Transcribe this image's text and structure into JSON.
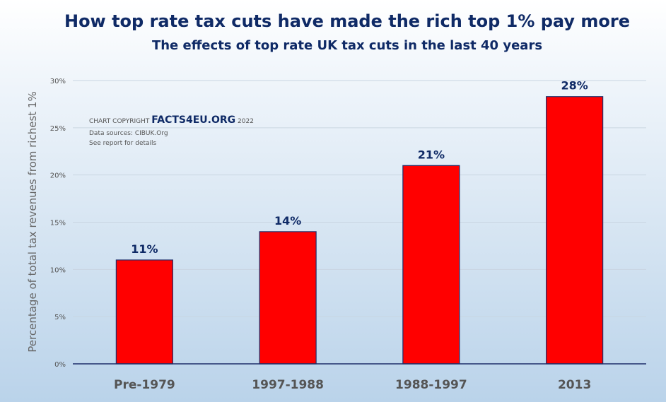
{
  "chart_data": {
    "type": "bar",
    "title": "How top rate tax cuts have made the rich top 1% pay more",
    "subtitle": "The effects of top rate UK tax cuts in the last 40 years",
    "categories": [
      "Pre-1979",
      "1997-1988",
      "1988-1997",
      "2013"
    ],
    "values": [
      11,
      14,
      21,
      28.3
    ],
    "data_labels": [
      "11%",
      "14%",
      "21%",
      "28%"
    ],
    "ylabel": "Percentage of total tax revenues from richest 1%",
    "ylim": [
      0,
      30
    ],
    "yticks": [
      0,
      5,
      10,
      15,
      20,
      25,
      30
    ],
    "ytick_labels": [
      "0%",
      "5%",
      "10%",
      "15%",
      "20%",
      "25%",
      "30%"
    ],
    "grid": true,
    "colors": {
      "bar": "#ff0000",
      "bar_edge": "#1f2f6b",
      "axis": "#1f2f6b",
      "label": "#0f2a66",
      "tick": "#555555"
    }
  },
  "annotation": {
    "prefix": "CHART COPYRIGHT",
    "brand": "FACTS4EU.ORG",
    "year": "2022",
    "sources": "Data sources: CIBUK.Org",
    "note": "See report for details"
  }
}
